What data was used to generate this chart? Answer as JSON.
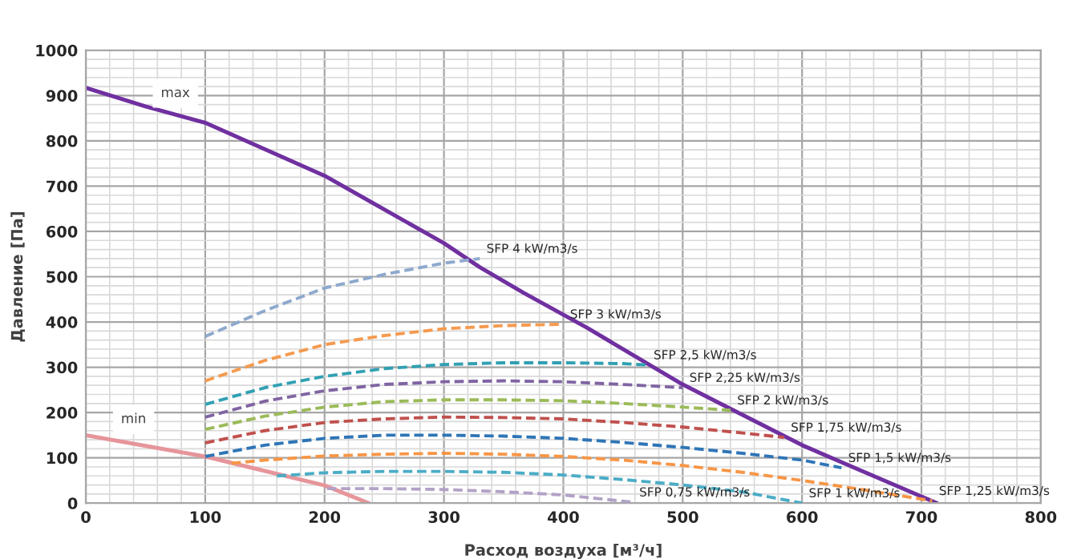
{
  "chart_data": {
    "type": "line",
    "xlabel": "Расход воздуха [м³/ч]",
    "ylabel": "Давление [Па]",
    "xlim": [
      0,
      800
    ],
    "ylim": [
      0,
      1000
    ],
    "xticks": [
      0,
      100,
      200,
      300,
      400,
      500,
      600,
      700,
      800
    ],
    "yticks": [
      0,
      100,
      200,
      300,
      400,
      500,
      600,
      700,
      800,
      900,
      1000
    ],
    "grid": true,
    "legend": false,
    "marker": "none",
    "series": [
      {
        "color": "#7030a0",
        "line_style": "solid",
        "x": [
          0,
          50,
          100,
          200,
          300,
          330,
          367,
          420,
          500,
          600,
          650,
          713
        ],
        "values": [
          917,
          876,
          840,
          723,
          574,
          521,
          464,
          387,
          262,
          128,
          71,
          0
        ]
      },
      {
        "color": "#e6959a",
        "line_style": "solid",
        "x": [
          0,
          100,
          200,
          237
        ],
        "values": [
          150,
          103,
          39,
          0
        ]
      },
      {
        "name": "SFP 4 kW/m3/s",
        "color": "#8ea9cd",
        "line_style": "dashed",
        "x": [
          100,
          150,
          200,
          250,
          300,
          330
        ],
        "values": [
          368,
          425,
          475,
          505,
          530,
          540
        ]
      },
      {
        "name": "SFP 3 kW/m3/s",
        "color": "#f59a4f",
        "line_style": "dashed",
        "x": [
          100,
          150,
          200,
          250,
          300,
          350,
          400
        ],
        "values": [
          270,
          315,
          350,
          370,
          385,
          392,
          395
        ]
      },
      {
        "name": "SFP 2,5 kW/m3/s",
        "color": "#31a0b3",
        "line_style": "dashed",
        "x": [
          100,
          150,
          200,
          250,
          300,
          350,
          400,
          450,
          470
        ],
        "values": [
          218,
          255,
          280,
          297,
          306,
          310,
          310,
          308,
          305
        ]
      },
      {
        "name": "SFP 2,25 kW/m3/s",
        "color": "#8064a2",
        "line_style": "dashed",
        "x": [
          100,
          150,
          200,
          250,
          300,
          350,
          400,
          450,
          500
        ],
        "values": [
          190,
          225,
          248,
          262,
          268,
          270,
          268,
          262,
          255
        ]
      },
      {
        "name": "SFP 2 kW/m3/s",
        "color": "#9bbb59",
        "line_style": "dashed",
        "x": [
          100,
          150,
          200,
          250,
          300,
          350,
          400,
          450,
          500,
          540
        ],
        "values": [
          163,
          192,
          212,
          224,
          228,
          228,
          226,
          220,
          212,
          205
        ]
      },
      {
        "name": "SFP 1,75 kW/m3/s",
        "color": "#c0504d",
        "line_style": "dashed",
        "x": [
          100,
          150,
          200,
          250,
          300,
          350,
          400,
          450,
          500,
          550,
          585
        ],
        "values": [
          133,
          160,
          178,
          186,
          190,
          189,
          186,
          178,
          168,
          155,
          145
        ]
      },
      {
        "name": "SFP 1,5 kW/m3/s",
        "color": "#2e75b6",
        "line_style": "dashed",
        "x": [
          100,
          150,
          200,
          250,
          300,
          350,
          400,
          450,
          500,
          550,
          600,
          633
        ],
        "values": [
          103,
          128,
          143,
          150,
          150,
          148,
          143,
          134,
          123,
          110,
          95,
          78
        ]
      },
      {
        "name": "SFP 1,25 kW/m3/s",
        "color": "#f79646",
        "line_style": "dashed",
        "x": [
          122,
          150,
          200,
          250,
          300,
          350,
          400,
          450,
          500,
          550,
          600,
          650,
          709
        ],
        "values": [
          88,
          95,
          104,
          108,
          110,
          108,
          103,
          95,
          83,
          68,
          50,
          30,
          5
        ]
      },
      {
        "name": "SFP 1 kW/m3/s",
        "color": "#4bacc6",
        "line_style": "dashed",
        "x": [
          160,
          200,
          250,
          300,
          350,
          400,
          450,
          500,
          550,
          600
        ],
        "values": [
          60,
          67,
          70,
          70,
          68,
          62,
          52,
          40,
          25,
          0
        ]
      },
      {
        "name": "SFP 0,75 kW/m3/s",
        "color": "#b3a2c7",
        "line_style": "dashed",
        "x": [
          202,
          250,
          300,
          350,
          400,
          458
        ],
        "values": [
          32,
          32,
          30,
          25,
          18,
          2
        ]
      }
    ],
    "annotations": [
      {
        "text": "max",
        "x": 75,
        "y": 905
      },
      {
        "text": "min",
        "x": 40,
        "y": 185
      }
    ]
  }
}
